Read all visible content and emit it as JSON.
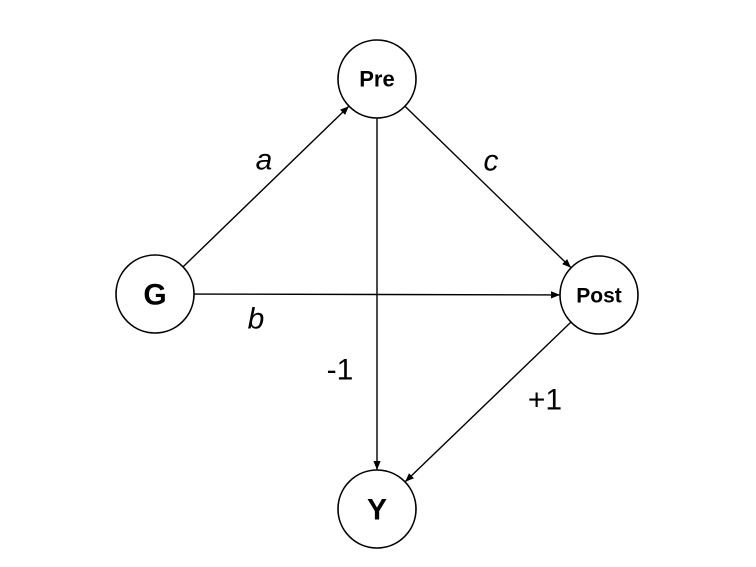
{
  "nodes": [
    {
      "id": "G",
      "label": "G"
    },
    {
      "id": "Pre",
      "label": "Pre"
    },
    {
      "id": "Post",
      "label": "Post"
    },
    {
      "id": "Y",
      "label": "Y"
    }
  ],
  "edges": [
    {
      "id": "g-pre",
      "from": "G",
      "to": "Pre",
      "label": "a",
      "italic": true
    },
    {
      "id": "g-post",
      "from": "G",
      "to": "Post",
      "label": "b",
      "italic": true
    },
    {
      "id": "pre-post",
      "from": "Pre",
      "to": "Post",
      "label": "c",
      "italic": true
    },
    {
      "id": "pre-y",
      "from": "Pre",
      "to": "Y",
      "label": "-1",
      "italic": false
    },
    {
      "id": "post-y",
      "from": "Post",
      "to": "Y",
      "label": "+1",
      "italic": false
    }
  ],
  "colors": {
    "stroke": "#000000",
    "fill": "#ffffff",
    "background": "#ffffff"
  }
}
